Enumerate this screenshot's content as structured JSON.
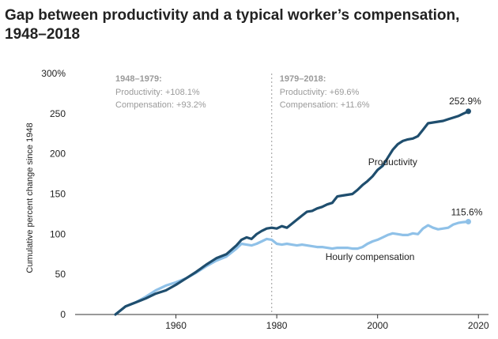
{
  "chart_data": {
    "type": "line",
    "title": "Gap between productivity and a typical worker’s compensation, 1948–2018",
    "ylabel": "Cumulative percent change since 1948",
    "xlabel": "",
    "xlim": [
      1940,
      2022
    ],
    "ylim": [
      0,
      300
    ],
    "x_ticks": [
      1960,
      1980,
      2000,
      2020
    ],
    "y_ticks": [
      0,
      50,
      100,
      150,
      200,
      250,
      300
    ],
    "y_tick_labels": [
      "0",
      "50",
      "100",
      "150",
      "200",
      "250",
      "300%"
    ],
    "grid": false,
    "divider_year": 1979,
    "annotations": [
      {
        "heading": "1948–1979:",
        "lines": [
          "Productivity: +108.1%",
          "Compensation: +93.2%"
        ]
      },
      {
        "heading": "1979–2018:",
        "lines": [
          "Productivity: +69.6%",
          "Compensation: +11.6%"
        ]
      }
    ],
    "series": [
      {
        "name": "Productivity",
        "color": "#1f4e6e",
        "end_label": "252.9%",
        "points": [
          [
            1948,
            0
          ],
          [
            1950,
            10
          ],
          [
            1952,
            15
          ],
          [
            1954,
            20
          ],
          [
            1956,
            26
          ],
          [
            1958,
            30
          ],
          [
            1960,
            37
          ],
          [
            1962,
            45
          ],
          [
            1964,
            53
          ],
          [
            1966,
            62
          ],
          [
            1968,
            70
          ],
          [
            1970,
            75
          ],
          [
            1972,
            86
          ],
          [
            1973,
            93
          ],
          [
            1974,
            96
          ],
          [
            1975,
            94
          ],
          [
            1976,
            100
          ],
          [
            1977,
            104
          ],
          [
            1978,
            107
          ],
          [
            1979,
            108
          ],
          [
            1980,
            107
          ],
          [
            1981,
            110
          ],
          [
            1982,
            108
          ],
          [
            1983,
            113
          ],
          [
            1984,
            118
          ],
          [
            1985,
            123
          ],
          [
            1986,
            128
          ],
          [
            1987,
            129
          ],
          [
            1988,
            132
          ],
          [
            1989,
            134
          ],
          [
            1990,
            137
          ],
          [
            1991,
            139
          ],
          [
            1992,
            147
          ],
          [
            1993,
            148
          ],
          [
            1994,
            149
          ],
          [
            1995,
            150
          ],
          [
            1996,
            155
          ],
          [
            1997,
            161
          ],
          [
            1998,
            166
          ],
          [
            1999,
            172
          ],
          [
            2000,
            180
          ],
          [
            2001,
            185
          ],
          [
            2002,
            195
          ],
          [
            2003,
            205
          ],
          [
            2004,
            212
          ],
          [
            2005,
            216
          ],
          [
            2006,
            218
          ],
          [
            2007,
            219
          ],
          [
            2008,
            222
          ],
          [
            2009,
            230
          ],
          [
            2010,
            238
          ],
          [
            2011,
            239
          ],
          [
            2012,
            240
          ],
          [
            2013,
            241
          ],
          [
            2014,
            243
          ],
          [
            2015,
            245
          ],
          [
            2016,
            247
          ],
          [
            2017,
            250
          ],
          [
            2018,
            252.9
          ]
        ]
      },
      {
        "name": "Hourly compensation",
        "color": "#8fc1e8",
        "end_label": "115.6%",
        "points": [
          [
            1948,
            0
          ],
          [
            1950,
            10
          ],
          [
            1952,
            15
          ],
          [
            1954,
            22
          ],
          [
            1956,
            30
          ],
          [
            1958,
            36
          ],
          [
            1960,
            40
          ],
          [
            1962,
            45
          ],
          [
            1964,
            52
          ],
          [
            1966,
            60
          ],
          [
            1968,
            67
          ],
          [
            1970,
            72
          ],
          [
            1972,
            82
          ],
          [
            1973,
            88
          ],
          [
            1974,
            87
          ],
          [
            1975,
            86
          ],
          [
            1976,
            88
          ],
          [
            1977,
            91
          ],
          [
            1978,
            94
          ],
          [
            1979,
            93
          ],
          [
            1980,
            88
          ],
          [
            1981,
            87
          ],
          [
            1982,
            88
          ],
          [
            1983,
            87
          ],
          [
            1984,
            86
          ],
          [
            1985,
            87
          ],
          [
            1986,
            86
          ],
          [
            1987,
            85
          ],
          [
            1988,
            84
          ],
          [
            1989,
            84
          ],
          [
            1990,
            83
          ],
          [
            1991,
            82
          ],
          [
            1992,
            83
          ],
          [
            1993,
            83
          ],
          [
            1994,
            83
          ],
          [
            1995,
            82
          ],
          [
            1996,
            82
          ],
          [
            1997,
            84
          ],
          [
            1998,
            88
          ],
          [
            1999,
            91
          ],
          [
            2000,
            93
          ],
          [
            2001,
            96
          ],
          [
            2002,
            99
          ],
          [
            2003,
            101
          ],
          [
            2004,
            100
          ],
          [
            2005,
            99
          ],
          [
            2006,
            99
          ],
          [
            2007,
            101
          ],
          [
            2008,
            100
          ],
          [
            2009,
            107
          ],
          [
            2010,
            111
          ],
          [
            2011,
            108
          ],
          [
            2012,
            106
          ],
          [
            2013,
            107
          ],
          [
            2014,
            108
          ],
          [
            2015,
            112
          ],
          [
            2016,
            114
          ],
          [
            2017,
            115
          ],
          [
            2018,
            115.6
          ]
        ]
      }
    ]
  }
}
